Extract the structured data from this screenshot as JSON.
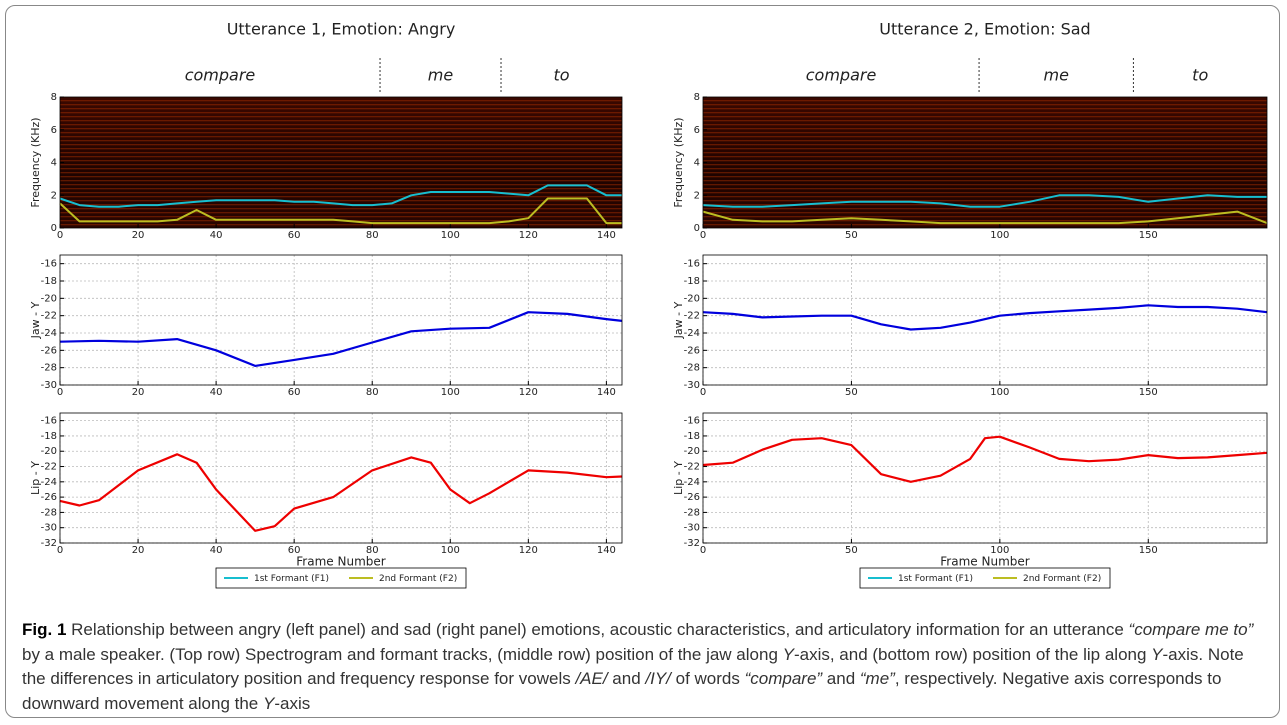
{
  "panels": [
    {
      "title": "Utterance 1, Emotion: Angry",
      "words": [
        "compare",
        "me",
        "to"
      ],
      "word_boundaries": [
        82,
        113
      ]
    },
    {
      "title": "Utterance 2, Emotion: Sad",
      "words": [
        "compare",
        "me",
        "to"
      ],
      "word_boundaries": [
        93,
        145
      ]
    }
  ],
  "chart_data": [
    {
      "type": "spectrogram",
      "ylabel": "Frequency (KHz)",
      "xlim": [
        0,
        144
      ],
      "xticks": [
        0,
        20,
        40,
        60,
        80,
        100,
        120,
        140
      ],
      "ylim": [
        0,
        8
      ],
      "yticks": [
        0,
        2,
        4,
        6,
        8
      ],
      "x": [
        0,
        5,
        10,
        15,
        20,
        25,
        30,
        35,
        40,
        45,
        50,
        55,
        60,
        65,
        70,
        75,
        80,
        85,
        90,
        95,
        100,
        105,
        110,
        115,
        120,
        125,
        130,
        135,
        140,
        144
      ],
      "series": [
        {
          "name": "1st Formant (F1)",
          "color": "#17becf",
          "values": [
            1.8,
            1.4,
            1.3,
            1.3,
            1.4,
            1.4,
            1.5,
            1.6,
            1.7,
            1.7,
            1.7,
            1.7,
            1.6,
            1.6,
            1.5,
            1.4,
            1.4,
            1.5,
            2.0,
            2.2,
            2.2,
            2.2,
            2.2,
            2.1,
            2.0,
            2.6,
            2.6,
            2.6,
            2.0,
            2.0
          ]
        },
        {
          "name": "2nd Formant (F2)",
          "color": "#bcbd22",
          "values": [
            1.5,
            0.4,
            0.4,
            0.4,
            0.4,
            0.4,
            0.5,
            1.1,
            0.5,
            0.5,
            0.5,
            0.5,
            0.5,
            0.5,
            0.5,
            0.4,
            0.3,
            0.3,
            0.3,
            0.3,
            0.3,
            0.3,
            0.3,
            0.4,
            0.6,
            1.8,
            1.8,
            1.8,
            0.3,
            0.3
          ]
        }
      ]
    },
    {
      "type": "line",
      "ylabel": "Jaw - Y",
      "grid": true,
      "xlim": [
        0,
        144
      ],
      "xticks": [
        0,
        20,
        40,
        60,
        80,
        100,
        120,
        140
      ],
      "ylim": [
        -30,
        -15
      ],
      "yticks": [
        -30,
        -28,
        -26,
        -24,
        -22,
        -20,
        -18,
        -16
      ],
      "x": [
        0,
        10,
        20,
        30,
        40,
        50,
        60,
        70,
        80,
        90,
        100,
        110,
        120,
        130,
        140,
        144
      ],
      "series": [
        {
          "color": "#0000dd",
          "values": [
            -25,
            -24.9,
            -25,
            -24.7,
            -26,
            -27.8,
            -27.1,
            -26.4,
            -25.1,
            -23.8,
            -23.5,
            -23.4,
            -21.6,
            -21.8,
            -22.4,
            -22.6
          ]
        }
      ]
    },
    {
      "type": "line",
      "ylabel": "Lip - Y",
      "xlabel": "Frame Number",
      "grid": true,
      "xlim": [
        0,
        144
      ],
      "xticks": [
        0,
        20,
        40,
        60,
        80,
        100,
        120,
        140
      ],
      "ylim": [
        -32,
        -15
      ],
      "yticks": [
        -32,
        -30,
        -28,
        -26,
        -24,
        -22,
        -20,
        -18,
        -16
      ],
      "x": [
        0,
        5,
        10,
        20,
        30,
        35,
        40,
        50,
        55,
        60,
        70,
        80,
        90,
        95,
        100,
        105,
        110,
        120,
        130,
        140,
        144
      ],
      "series": [
        {
          "color": "#ee0000",
          "values": [
            -26.5,
            -27.1,
            -26.4,
            -22.5,
            -20.4,
            -21.5,
            -25,
            -30.4,
            -29.8,
            -27.5,
            -26,
            -22.5,
            -20.8,
            -21.5,
            -25,
            -26.8,
            -25.5,
            -22.5,
            -22.8,
            -23.4,
            -23.3
          ]
        }
      ]
    },
    {
      "type": "spectrogram",
      "ylabel": "Frequency (KHz)",
      "xlim": [
        0,
        190
      ],
      "xticks": [
        0,
        50,
        100,
        150
      ],
      "ylim": [
        0,
        8
      ],
      "yticks": [
        0,
        2,
        4,
        6,
        8
      ],
      "x": [
        0,
        10,
        20,
        30,
        40,
        50,
        60,
        70,
        80,
        90,
        100,
        110,
        120,
        130,
        140,
        150,
        160,
        170,
        180,
        190
      ],
      "series": [
        {
          "name": "1st Formant (F1)",
          "color": "#17becf",
          "values": [
            1.4,
            1.3,
            1.3,
            1.4,
            1.5,
            1.6,
            1.6,
            1.6,
            1.5,
            1.3,
            1.3,
            1.6,
            2.0,
            2.0,
            1.9,
            1.6,
            1.8,
            2.0,
            1.9,
            1.9
          ]
        },
        {
          "name": "2nd Formant (F2)",
          "color": "#bcbd22",
          "values": [
            1.0,
            0.5,
            0.4,
            0.4,
            0.5,
            0.6,
            0.5,
            0.4,
            0.3,
            0.3,
            0.3,
            0.3,
            0.3,
            0.3,
            0.3,
            0.4,
            0.6,
            0.8,
            1.0,
            0.3
          ]
        }
      ]
    },
    {
      "type": "line",
      "ylabel": "Jaw - Y",
      "grid": true,
      "xlim": [
        0,
        190
      ],
      "xticks": [
        0,
        50,
        100,
        150
      ],
      "ylim": [
        -30,
        -15
      ],
      "yticks": [
        -30,
        -28,
        -26,
        -24,
        -22,
        -20,
        -18,
        -16
      ],
      "x": [
        0,
        10,
        20,
        30,
        40,
        50,
        60,
        70,
        80,
        90,
        100,
        110,
        120,
        130,
        140,
        150,
        160,
        170,
        180,
        190
      ],
      "series": [
        {
          "color": "#0000dd",
          "values": [
            -21.6,
            -21.8,
            -22.2,
            -22.1,
            -22,
            -22,
            -23,
            -23.6,
            -23.4,
            -22.8,
            -22,
            -21.7,
            -21.5,
            -21.3,
            -21.1,
            -20.8,
            -21,
            -21,
            -21.2,
            -21.6
          ]
        }
      ]
    },
    {
      "type": "line",
      "ylabel": "Lip - Y",
      "xlabel": "Frame Number",
      "grid": true,
      "xlim": [
        0,
        190
      ],
      "xticks": [
        0,
        50,
        100,
        150
      ],
      "ylim": [
        -32,
        -15
      ],
      "yticks": [
        -32,
        -30,
        -28,
        -26,
        -24,
        -22,
        -20,
        -18,
        -16
      ],
      "x": [
        0,
        10,
        20,
        30,
        40,
        50,
        60,
        70,
        80,
        90,
        95,
        100,
        110,
        120,
        130,
        140,
        150,
        160,
        170,
        180,
        190
      ],
      "series": [
        {
          "color": "#ee0000",
          "values": [
            -21.8,
            -21.5,
            -19.8,
            -18.5,
            -18.3,
            -19.2,
            -23,
            -24,
            -23.2,
            -21,
            -18.3,
            -18.1,
            -19.5,
            -21,
            -21.3,
            -21.1,
            -20.5,
            -20.9,
            -20.8,
            -20.5,
            -20.2
          ]
        }
      ]
    }
  ],
  "caption": {
    "label": "Fig. 1",
    "parts": [
      {
        "text": " Relationship between angry (left panel) and sad (right panel) emotions, acoustic characteristics, and articulatory information for an utterance "
      },
      {
        "text": "“compare me to”",
        "italic": true
      },
      {
        "text": " by a male speaker. (Top row) Spectrogram and formant tracks, (middle row) position of the jaw along "
      },
      {
        "text": "Y",
        "italic": true
      },
      {
        "text": "-axis, and (bottom row) position of the lip along "
      },
      {
        "text": "Y",
        "italic": true
      },
      {
        "text": "-axis. Note the differences in articulatory position and frequency response for vowels "
      },
      {
        "text": "/AE/",
        "italic": true
      },
      {
        "text": " and "
      },
      {
        "text": "/IY/",
        "italic": true
      },
      {
        "text": " of words "
      },
      {
        "text": "“compare”",
        "italic": true
      },
      {
        "text": " and "
      },
      {
        "text": "“me”",
        "italic": true
      },
      {
        "text": ", respectively. Negative axis corresponds to downward movement along the "
      },
      {
        "text": "Y",
        "italic": true
      },
      {
        "text": "-axis"
      }
    ]
  }
}
